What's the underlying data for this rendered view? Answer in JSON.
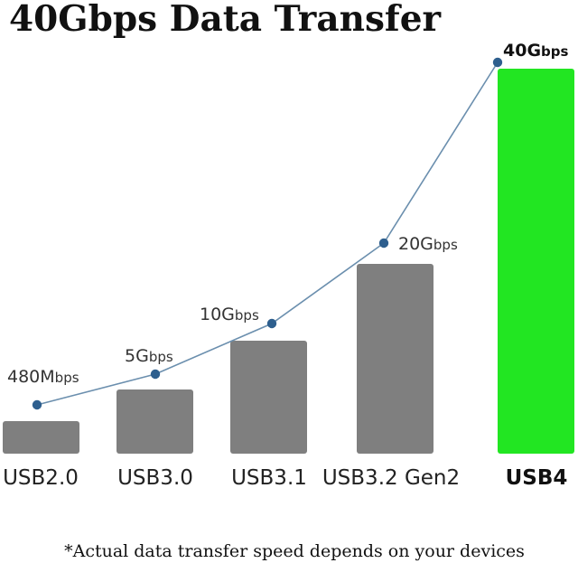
{
  "chart_data": {
    "type": "bar",
    "title": "40Gbps Data Transfer",
    "categories": [
      "USB2.0",
      "USB3.0",
      "USB3.1",
      "USB3.2 Gen2",
      "USB4"
    ],
    "bars": [
      {
        "category": "USB2.0",
        "value": 0.48,
        "color": "#7f7f7f"
      },
      {
        "category": "USB3.0",
        "value": 5,
        "color": "#7f7f7f"
      },
      {
        "category": "USB3.1",
        "value": 10,
        "color": "#7f7f7f"
      },
      {
        "category": "USB3.2 Gen2",
        "value": 20,
        "color": "#7f7f7f"
      },
      {
        "category": "USB4",
        "value": 40,
        "color": "#22e622"
      }
    ],
    "speed_labels": [
      {
        "num": "480M",
        "unit": "bps"
      },
      {
        "num": "5G",
        "unit": "bps"
      },
      {
        "num": "10G",
        "unit": "bps"
      },
      {
        "num": "20G",
        "unit": "bps"
      },
      {
        "num": "40G",
        "unit": "bps"
      }
    ],
    "trend_line_color": "#6b8fae",
    "marker_color": "#2e5f8e",
    "footnote": "*Actual data transfer speed depends on your devices"
  }
}
